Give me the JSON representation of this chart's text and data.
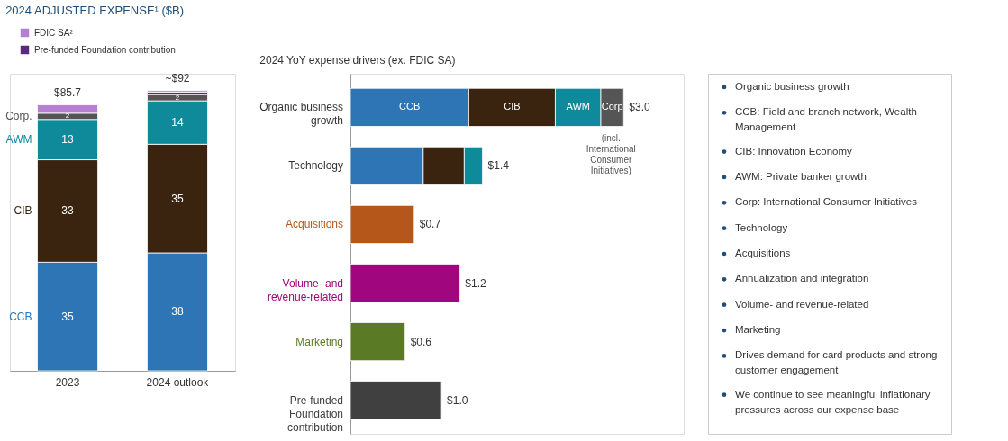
{
  "chart_data": [
    {
      "type": "bar",
      "stacked": true,
      "title": "2024 ADJUSTED EXPENSE¹ ($B)",
      "categories": [
        "2023",
        "2024 outlook"
      ],
      "legend": "top left",
      "series": [
        {
          "name": "CCB",
          "color": "#2e75b6",
          "values": [
            35,
            38
          ],
          "value_labels": [
            "35",
            "38"
          ]
        },
        {
          "name": "CIB",
          "color": "#3a2410",
          "values": [
            33,
            35
          ],
          "value_labels": [
            "33",
            "35"
          ]
        },
        {
          "name": "AWM",
          "color": "#0f8a9a",
          "values": [
            13,
            14
          ],
          "value_labels": [
            "13",
            "14"
          ]
        },
        {
          "name": "Corp.",
          "color": "#555555",
          "values": [
            2,
            2
          ],
          "value_labels": [
            "2",
            "2"
          ]
        },
        {
          "name": "Pre-funded Foundation contribution",
          "color": "#5b2a7a",
          "values": [
            null,
            0.8
          ]
        },
        {
          "name": "FDIC SA²",
          "color": "#b57fd6",
          "values": [
            2.7,
            0.5
          ]
        }
      ],
      "totals": [
        "$85.7",
        "~$92"
      ]
    },
    {
      "type": "bar",
      "stacked": true,
      "orientation": "horizontal",
      "title": "2024 YoY expense drivers (ex. FDIC SA)",
      "categories": [
        "Organic business growth",
        "Technology",
        "Acquisitions",
        "Volume- and revenue-related",
        "Marketing",
        "Pre-funded Foundation contribution"
      ],
      "series": [
        {
          "name": "CCB",
          "color": "#2e75b6",
          "values": [
            1.3,
            0.8,
            null,
            null,
            null,
            null
          ]
        },
        {
          "name": "CIB",
          "color": "#3a2410",
          "values": [
            0.95,
            0.45,
            null,
            null,
            null,
            null
          ]
        },
        {
          "name": "AWM",
          "color": "#0f8a9a",
          "values": [
            0.5,
            0.2,
            null,
            null,
            null,
            null
          ]
        },
        {
          "name": "Corp",
          "color": "#555555",
          "values": [
            0.25,
            null,
            null,
            null,
            null,
            null
          ]
        },
        {
          "colors": [
            null,
            null,
            "#b5561a",
            "#a0067e",
            "#5a7a25",
            "#404040"
          ],
          "values": [
            null,
            null,
            0.7,
            1.2,
            0.6,
            1.0
          ],
          "value_labels": [
            null,
            null,
            "$0.7",
            "$1.2",
            "$0.6",
            "$1.0"
          ]
        }
      ],
      "totals": [
        "$3.0",
        "$1.4",
        null,
        null,
        null,
        null
      ],
      "annotations": [
        "(incl. International Consumer Initiatives)"
      ]
    },
    {
      "type": "other",
      "annotations": [
        "Organic business growth",
        "CCB: Field and branch network, Wealth Management",
        "CIB: Innovation Economy",
        "AWM: Private banker growth",
        "Corp: International Consumer Initiatives",
        "Technology",
        "Acquisitions",
        "Annualization and integration",
        "Volume- and revenue-related",
        "Marketing",
        "Drives demand for card products and strong customer engagement",
        "We continue to see meaningful inflationary pressures across our expense base"
      ]
    }
  ]
}
